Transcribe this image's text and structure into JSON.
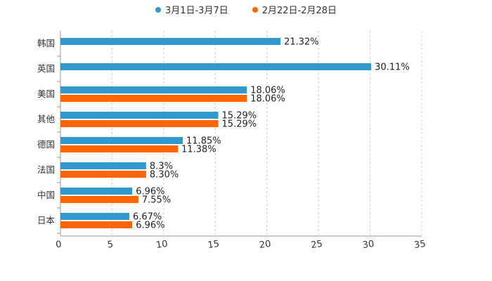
{
  "chart_data": {
    "type": "bar",
    "orientation": "horizontal",
    "title": "",
    "xlabel": "",
    "ylabel": "",
    "categories": [
      "韩国",
      "英国",
      "美国",
      "其他",
      "德国",
      "法国",
      "中国",
      "日本"
    ],
    "series": [
      {
        "name": "3月1日-3月7日",
        "color": "#3399cc",
        "values": [
          21.32,
          30.11,
          18.06,
          15.29,
          11.85,
          8.3,
          6.96,
          6.67
        ],
        "labels": [
          "21.32%",
          "30.11%",
          "18.06%",
          "15.29%",
          "11.85%",
          "8.3%",
          "6.96%",
          "6.67%"
        ]
      },
      {
        "name": "2月22日-2月28日",
        "color": "#ff6600",
        "values": [
          null,
          null,
          18.06,
          15.29,
          11.38,
          8.3,
          7.55,
          6.96
        ],
        "labels": [
          null,
          null,
          "18.06%",
          "15.29%",
          "11.38%",
          "8.30%",
          "7.55%",
          "6.96%"
        ]
      }
    ],
    "xlim": [
      0,
      35
    ],
    "xticks": [
      0,
      5,
      10,
      15,
      20,
      25,
      30,
      35
    ],
    "xtick_labels": [
      "0",
      "5",
      "10",
      "15",
      "20",
      "25",
      "30",
      "35"
    ],
    "grid": true,
    "legend": "top-center"
  }
}
